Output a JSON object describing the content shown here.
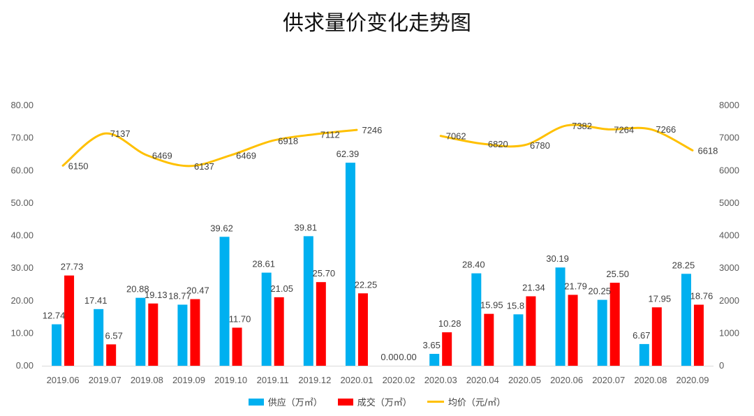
{
  "chart_data": {
    "type": "bar",
    "title": "供求量价变化走势图",
    "categories": [
      "2019.06",
      "2019.07",
      "2019.08",
      "2019.09",
      "2019.10",
      "2019.11",
      "2019.12",
      "2020.01",
      "2020.02",
      "2020.03",
      "2020.04",
      "2020.05",
      "2020.06",
      "2020.07",
      "2020.08",
      "2020.09"
    ],
    "y_left": {
      "range": [
        0,
        80
      ],
      "ticks": [
        "0.00",
        "10.00",
        "20.00",
        "30.00",
        "40.00",
        "50.00",
        "60.00",
        "70.00",
        "80.00"
      ]
    },
    "y_right": {
      "range": [
        0,
        8000
      ],
      "ticks": [
        "0",
        "1000",
        "2000",
        "3000",
        "4000",
        "5000",
        "6000",
        "7000",
        "8000"
      ]
    },
    "grid": false,
    "legend_position": "bottom",
    "series": [
      {
        "name": "供应（万㎡）",
        "type": "bar",
        "axis": "left",
        "color": "#00b0f0",
        "values": [
          12.74,
          17.41,
          20.88,
          18.77,
          39.62,
          28.61,
          39.81,
          62.39,
          0.0,
          3.65,
          28.4,
          15.8,
          30.19,
          20.25,
          6.67,
          28.25
        ],
        "labels": [
          "12.74",
          "17.41",
          "20.88",
          "18.77",
          "39.62",
          "28.61",
          "39.81",
          "62.39",
          "0.00",
          "3.65",
          "28.40",
          "15.8",
          "30.19",
          "20.25",
          "6.67",
          "28.25"
        ]
      },
      {
        "name": "成交（万㎡）",
        "type": "bar",
        "axis": "left",
        "color": "#ff0000",
        "values": [
          27.73,
          6.57,
          19.13,
          20.47,
          11.7,
          21.05,
          25.7,
          22.25,
          0.0,
          10.28,
          15.95,
          21.34,
          21.79,
          25.5,
          17.95,
          18.76
        ],
        "labels": [
          "27.73",
          "6.57",
          "19.13",
          "20.47",
          "11.70",
          "21.05",
          "25.70",
          "22.25",
          "0.00",
          "10.28",
          "15.95",
          "21.34",
          "21.79",
          "25.50",
          "17.95",
          "18.76"
        ]
      },
      {
        "name": "均价（元/㎡）",
        "type": "line",
        "axis": "right",
        "color": "#ffc000",
        "values": [
          6150,
          7137,
          6469,
          6137,
          6469,
          6918,
          7112,
          7246,
          null,
          7062,
          6820,
          6780,
          7382,
          7264,
          7266,
          6618
        ],
        "labels": [
          "6150",
          "7137",
          "6469",
          "6137",
          "6469",
          "6918",
          "7112",
          "7246",
          "",
          "7062",
          "6820",
          "6780",
          "7382",
          "7264",
          "7266",
          "6618"
        ]
      }
    ]
  }
}
